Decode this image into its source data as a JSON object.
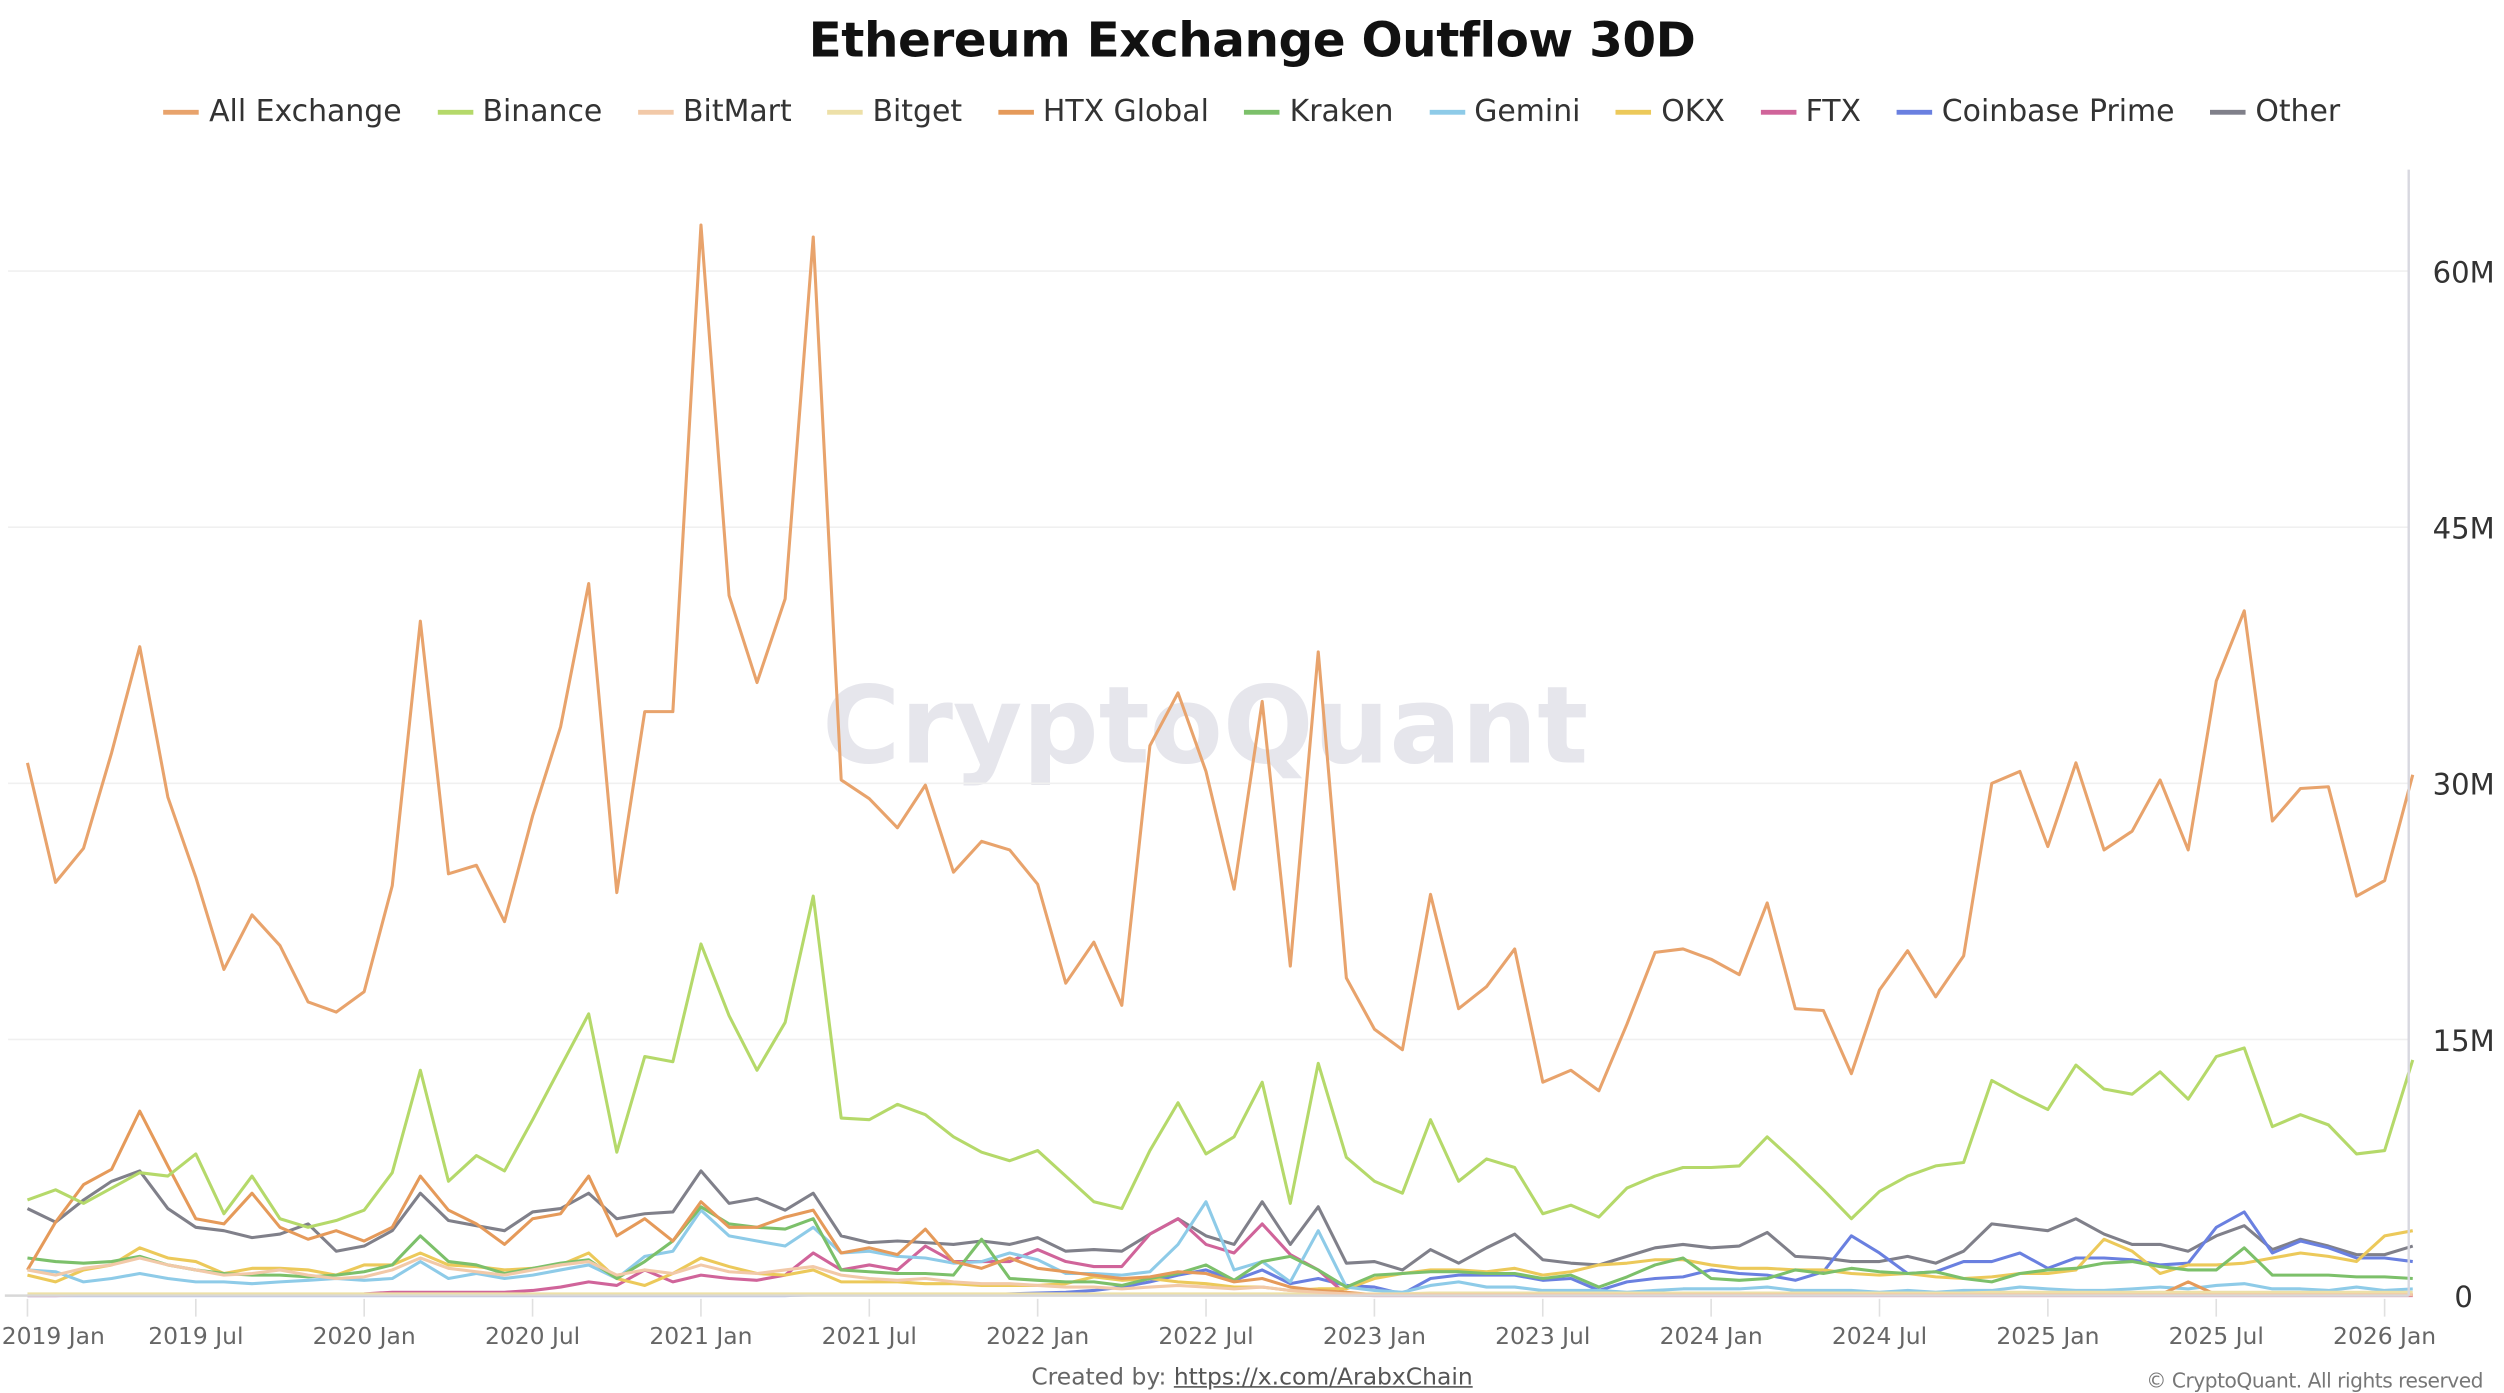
{
  "chart_data": {
    "type": "line",
    "title": "Ethereum Exchange Outflow 30D",
    "xlabel": "",
    "ylabel": "",
    "ylim": [
      0,
      66
    ],
    "y_axis_side": "right",
    "grid": "horizontal",
    "legend_placement": "top",
    "watermark": "CryptoQuant",
    "y_ticks": [
      {
        "value": 0,
        "label": "0"
      },
      {
        "value": 15,
        "label": "15M"
      },
      {
        "value": 30,
        "label": "30M"
      },
      {
        "value": 45,
        "label": "45M"
      },
      {
        "value": 60,
        "label": "60M"
      }
    ],
    "x_ticks": [
      {
        "value": "2019-01",
        "label": "2019 Jan"
      },
      {
        "value": "2019-07",
        "label": "2019 Jul"
      },
      {
        "value": "2020-01",
        "label": "2020 Jan"
      },
      {
        "value": "2020-07",
        "label": "2020 Jul"
      },
      {
        "value": "2021-01",
        "label": "2021 Jan"
      },
      {
        "value": "2021-07",
        "label": "2021 Jul"
      },
      {
        "value": "2022-01",
        "label": "2022 Jan"
      },
      {
        "value": "2022-07",
        "label": "2022 Jul"
      },
      {
        "value": "2023-01",
        "label": "2023 Jan"
      },
      {
        "value": "2023-07",
        "label": "2023 Jul"
      },
      {
        "value": "2024-01",
        "label": "2024 Jan"
      },
      {
        "value": "2024-07",
        "label": "2024 Jul"
      },
      {
        "value": "2025-01",
        "label": "2025 Jan"
      },
      {
        "value": "2025-07",
        "label": "2025 Jul"
      },
      {
        "value": "2026-01",
        "label": "2026 Jan"
      }
    ],
    "units": "M (millions ETH)",
    "x": [
      "2019-01",
      "2019-02",
      "2019-03",
      "2019-04",
      "2019-05",
      "2019-06",
      "2019-07",
      "2019-08",
      "2019-09",
      "2019-10",
      "2019-11",
      "2019-12",
      "2020-01",
      "2020-02",
      "2020-03",
      "2020-04",
      "2020-05",
      "2020-06",
      "2020-07",
      "2020-08",
      "2020-09",
      "2020-10",
      "2020-11",
      "2020-12",
      "2021-01",
      "2021-02",
      "2021-03",
      "2021-04",
      "2021-05",
      "2021-06",
      "2021-07",
      "2021-08",
      "2021-09",
      "2021-10",
      "2021-11",
      "2021-12",
      "2022-01",
      "2022-02",
      "2022-03",
      "2022-04",
      "2022-05",
      "2022-06",
      "2022-07",
      "2022-08",
      "2022-09",
      "2022-10",
      "2022-11",
      "2022-12",
      "2023-01",
      "2023-02",
      "2023-03",
      "2023-04",
      "2023-05",
      "2023-06",
      "2023-07",
      "2023-08",
      "2023-09",
      "2023-10",
      "2023-11",
      "2023-12",
      "2024-01",
      "2024-02",
      "2024-03",
      "2024-04",
      "2024-05",
      "2024-06",
      "2024-07",
      "2024-08",
      "2024-09",
      "2024-10",
      "2024-11",
      "2024-12",
      "2025-01",
      "2025-02",
      "2025-03",
      "2025-04",
      "2025-05",
      "2025-06",
      "2025-07",
      "2025-08",
      "2025-09",
      "2025-10",
      "2025-11",
      "2025-12",
      "2026-01",
      "2026-02"
    ],
    "series": [
      {
        "name": "All Exchange",
        "color": "#e8a36c",
        "values": [
          31.2,
          24.2,
          26.2,
          31.8,
          38.0,
          29.2,
          24.5,
          19.1,
          22.3,
          20.5,
          17.2,
          16.6,
          17.8,
          24.0,
          39.5,
          24.7,
          25.2,
          21.9,
          28.1,
          33.3,
          41.7,
          23.6,
          34.2,
          34.2,
          62.7,
          41.0,
          35.9,
          40.8,
          62.0,
          30.2,
          29.1,
          27.4,
          29.9,
          24.8,
          26.6,
          26.1,
          24.1,
          18.3,
          20.7,
          17.0,
          32.2,
          35.3,
          30.7,
          23.8,
          34.8,
          19.3,
          37.7,
          18.6,
          15.6,
          14.4,
          23.5,
          16.8,
          18.1,
          20.3,
          12.5,
          13.2,
          12.0,
          15.9,
          20.1,
          20.3,
          19.7,
          18.8,
          23.0,
          16.8,
          16.7,
          13.0,
          17.9,
          20.2,
          17.5,
          19.9,
          30.0,
          30.7,
          26.3,
          31.2,
          26.1,
          27.2,
          30.2,
          26.1,
          36.0,
          40.1,
          27.8,
          29.7,
          29.8,
          23.4,
          24.3,
          30.5
        ]
      },
      {
        "name": "Binance",
        "color": "#b5d96a",
        "values": [
          5.6,
          6.2,
          5.4,
          6.3,
          7.2,
          7.0,
          8.3,
          4.8,
          7.0,
          4.5,
          4.0,
          4.4,
          5.0,
          7.2,
          13.2,
          6.7,
          8.2,
          7.3,
          10.3,
          13.4,
          16.5,
          8.4,
          14.0,
          13.7,
          20.6,
          16.4,
          13.2,
          16.0,
          23.4,
          10.4,
          10.3,
          11.2,
          10.6,
          9.3,
          8.4,
          7.9,
          8.5,
          7.0,
          5.5,
          5.1,
          8.5,
          11.3,
          8.3,
          9.3,
          12.5,
          5.4,
          13.6,
          8.1,
          6.7,
          6.0,
          10.3,
          6.7,
          8.0,
          7.5,
          4.8,
          5.3,
          4.6,
          6.3,
          7.0,
          7.5,
          7.5,
          7.6,
          9.3,
          7.8,
          6.2,
          4.5,
          6.1,
          7.0,
          7.6,
          7.8,
          12.6,
          11.7,
          10.9,
          13.5,
          12.1,
          11.8,
          13.1,
          11.5,
          14.0,
          14.5,
          9.9,
          10.6,
          10.0,
          8.3,
          8.5,
          13.8
        ]
      },
      {
        "name": "BitMart",
        "color": "#f2c9a8",
        "values": [
          1.5,
          1.2,
          1.6,
          1.8,
          2.2,
          1.8,
          1.5,
          1.2,
          1.3,
          1.5,
          1.2,
          1.0,
          1.1,
          1.5,
          2.2,
          1.6,
          1.4,
          1.2,
          1.5,
          1.8,
          2.0,
          1.2,
          1.5,
          1.3,
          1.8,
          1.4,
          1.3,
          1.5,
          1.7,
          1.2,
          1.0,
          0.9,
          1.0,
          0.8,
          0.7,
          0.7,
          0.6,
          0.5,
          0.5,
          0.4,
          0.5,
          0.6,
          0.5,
          0.4,
          0.5,
          0.3,
          0.2,
          0.1,
          0.05,
          0.05,
          0.05,
          0.05,
          0.05,
          0.05,
          0.05,
          0.05,
          0.05,
          0.05,
          0.05,
          0.05,
          0.05,
          0.05,
          0.05,
          0.05,
          0.05,
          0.05,
          0.05,
          0.05,
          0.05,
          0.05,
          0.05,
          0.05,
          0.05,
          0.05,
          0.05,
          0.05,
          0.05,
          0.05,
          0.05,
          0.05,
          0.05,
          0.05,
          0.05,
          0.05,
          0.05,
          0.05
        ]
      },
      {
        "name": "Bitget",
        "color": "#ede0a8",
        "values": [
          0.1,
          0.1,
          0.1,
          0.1,
          0.1,
          0.1,
          0.1,
          0.1,
          0.1,
          0.1,
          0.1,
          0.1,
          0.1,
          0.1,
          0.1,
          0.1,
          0.1,
          0.1,
          0.1,
          0.1,
          0.1,
          0.1,
          0.1,
          0.1,
          0.1,
          0.1,
          0.1,
          0.1,
          0.1,
          0.1,
          0.1,
          0.1,
          0.1,
          0.1,
          0.1,
          0.1,
          0.1,
          0.1,
          0.1,
          0.1,
          0.1,
          0.1,
          0.1,
          0.1,
          0.1,
          0.1,
          0.1,
          0.1,
          0.1,
          0.1,
          0.15,
          0.15,
          0.15,
          0.15,
          0.15,
          0.15,
          0.15,
          0.15,
          0.15,
          0.15,
          0.15,
          0.15,
          0.15,
          0.15,
          0.15,
          0.15,
          0.15,
          0.15,
          0.15,
          0.15,
          0.2,
          0.2,
          0.2,
          0.2,
          0.2,
          0.2,
          0.2,
          0.2,
          0.2,
          0.2,
          0.2,
          0.2,
          0.2,
          0.2,
          0.2,
          0.2
        ]
      },
      {
        "name": "HTX Global",
        "color": "#e59a5a",
        "values": [
          1.5,
          4.3,
          6.5,
          7.4,
          10.8,
          7.6,
          4.5,
          4.2,
          6.0,
          4.0,
          3.3,
          3.8,
          3.2,
          4.0,
          7.0,
          5.0,
          4.2,
          3.0,
          4.5,
          4.8,
          7.0,
          3.5,
          4.5,
          3.2,
          5.5,
          4.0,
          4.0,
          4.6,
          5.0,
          2.5,
          2.8,
          2.4,
          3.9,
          2.0,
          1.6,
          2.2,
          1.6,
          1.4,
          1.2,
          1.0,
          1.1,
          1.4,
          1.3,
          0.8,
          1.0,
          0.5,
          0.3,
          0.2,
          0.05,
          0.05,
          0.05,
          0.05,
          0.05,
          0.05,
          0.05,
          0.05,
          0.05,
          0.05,
          0.05,
          0.05,
          0.05,
          0.05,
          0.05,
          0.05,
          0.05,
          0.05,
          0.05,
          0.05,
          0.05,
          0.05,
          0.05,
          0.05,
          0.05,
          0.05,
          0.05,
          0.05,
          0.05,
          0.8,
          0.05,
          0.05,
          0.05,
          0.05,
          0.05,
          0.05,
          0.05,
          0.05
        ]
      },
      {
        "name": "Kraken",
        "color": "#7cc06a",
        "values": [
          2.2,
          2.0,
          1.9,
          2.0,
          2.3,
          1.8,
          1.5,
          1.3,
          1.2,
          1.2,
          1.1,
          1.2,
          1.4,
          1.8,
          3.5,
          2.0,
          1.8,
          1.3,
          1.6,
          1.9,
          2.1,
          1.0,
          2.0,
          3.2,
          5.2,
          4.2,
          4.0,
          3.9,
          4.5,
          1.5,
          1.4,
          1.3,
          1.3,
          1.2,
          3.3,
          1.0,
          0.9,
          0.8,
          0.8,
          0.6,
          1.0,
          1.3,
          1.8,
          0.9,
          2.0,
          2.3,
          1.5,
          0.5,
          1.2,
          1.3,
          1.4,
          1.4,
          1.3,
          1.3,
          1.0,
          1.2,
          0.5,
          1.1,
          1.8,
          2.2,
          1.0,
          0.9,
          1.0,
          1.5,
          1.3,
          1.6,
          1.4,
          1.3,
          1.4,
          1.0,
          0.8,
          1.3,
          1.5,
          1.6,
          1.9,
          2.0,
          1.7,
          1.5,
          1.5,
          2.8,
          1.2,
          1.2,
          1.2,
          1.1,
          1.1,
          1.0
        ]
      },
      {
        "name": "Gemini",
        "color": "#8ecbe8",
        "values": [
          1.5,
          1.4,
          0.8,
          1.0,
          1.3,
          1.0,
          0.8,
          0.8,
          0.7,
          0.8,
          0.9,
          1.0,
          0.9,
          1.0,
          2.0,
          1.0,
          1.3,
          1.0,
          1.2,
          1.5,
          1.8,
          1.0,
          2.3,
          2.6,
          5.0,
          3.5,
          3.2,
          2.9,
          4.0,
          2.5,
          2.6,
          2.3,
          2.2,
          1.9,
          2.0,
          2.5,
          2.1,
          1.3,
          1.3,
          1.2,
          1.4,
          3.0,
          5.5,
          1.5,
          2.0,
          0.8,
          3.8,
          0.5,
          0.3,
          0.2,
          0.6,
          0.8,
          0.5,
          0.5,
          0.3,
          0.3,
          0.3,
          0.2,
          0.3,
          0.4,
          0.4,
          0.4,
          0.5,
          0.3,
          0.3,
          0.3,
          0.2,
          0.3,
          0.2,
          0.3,
          0.3,
          0.5,
          0.4,
          0.3,
          0.3,
          0.4,
          0.5,
          0.4,
          0.6,
          0.7,
          0.4,
          0.4,
          0.3,
          0.5,
          0.3,
          0.4
        ]
      },
      {
        "name": "OKX",
        "color": "#ecc95a",
        "values": [
          1.2,
          0.8,
          1.5,
          1.8,
          2.8,
          2.2,
          2.0,
          1.3,
          1.6,
          1.6,
          1.5,
          1.2,
          1.8,
          1.8,
          2.5,
          1.8,
          1.7,
          1.5,
          1.6,
          1.8,
          2.5,
          1.0,
          0.6,
          1.3,
          2.2,
          1.7,
          1.3,
          1.2,
          1.5,
          0.8,
          0.8,
          0.8,
          0.7,
          0.7,
          0.6,
          0.6,
          0.6,
          0.7,
          1.1,
          0.9,
          1.0,
          0.8,
          0.7,
          0.5,
          0.5,
          0.3,
          0.4,
          0.4,
          1.0,
          1.3,
          1.5,
          1.5,
          1.4,
          1.6,
          1.2,
          1.4,
          1.8,
          1.9,
          2.1,
          2.1,
          1.8,
          1.6,
          1.6,
          1.5,
          1.5,
          1.3,
          1.2,
          1.3,
          1.1,
          1.0,
          1.1,
          1.3,
          1.3,
          1.5,
          3.3,
          2.6,
          1.3,
          1.8,
          1.8,
          1.9,
          2.2,
          2.5,
          2.3,
          2.0,
          3.5,
          3.8
        ]
      },
      {
        "name": "FTX",
        "color": "#d0649a",
        "values": [
          0,
          0,
          0.05,
          0.05,
          0.05,
          0.05,
          0.05,
          0.05,
          0.05,
          0.05,
          0.05,
          0.08,
          0.1,
          0.2,
          0.2,
          0.2,
          0.2,
          0.2,
          0.3,
          0.5,
          0.8,
          0.6,
          1.5,
          0.8,
          1.2,
          1.0,
          0.9,
          1.2,
          2.5,
          1.5,
          1.8,
          1.5,
          2.9,
          2.0,
          2.0,
          2.0,
          2.7,
          2.0,
          1.7,
          1.7,
          3.6,
          4.5,
          3.0,
          2.5,
          4.2,
          2.4,
          1.5,
          0.05,
          0,
          0,
          0,
          0,
          0,
          0,
          0,
          0,
          0,
          0,
          0,
          0,
          0,
          0,
          0,
          0,
          0,
          0,
          0,
          0,
          0,
          0,
          0,
          0,
          0,
          0,
          0,
          0,
          0,
          0,
          0,
          0,
          0,
          0,
          0,
          0,
          0,
          0
        ]
      },
      {
        "name": "Coinbase Prime",
        "color": "#6a80e0",
        "values": [
          0,
          0,
          0,
          0,
          0,
          0,
          0,
          0,
          0,
          0,
          0,
          0,
          0,
          0,
          0,
          0,
          0,
          0,
          0,
          0,
          0,
          0,
          0,
          0,
          0,
          0,
          0,
          0,
          0.05,
          0.05,
          0.05,
          0.05,
          0.05,
          0.05,
          0.05,
          0.1,
          0.15,
          0.2,
          0.3,
          0.5,
          0.8,
          1.2,
          1.5,
          0.9,
          1.5,
          0.7,
          1.0,
          0.6,
          0.5,
          0.1,
          1.0,
          1.2,
          1.2,
          1.2,
          0.9,
          1.0,
          0.3,
          0.8,
          1.0,
          1.1,
          1.5,
          1.3,
          1.2,
          0.9,
          1.4,
          3.5,
          2.5,
          1.3,
          1.4,
          2.0,
          2.0,
          2.5,
          1.6,
          2.2,
          2.2,
          2.1,
          1.8,
          1.9,
          4.0,
          4.9,
          2.5,
          3.2,
          2.8,
          2.2,
          2.2,
          2.0
        ]
      },
      {
        "name": "Other",
        "color": "#80808a",
        "values": [
          5.1,
          4.3,
          5.6,
          6.7,
          7.3,
          5.1,
          4.0,
          3.8,
          3.4,
          3.6,
          4.2,
          2.6,
          2.9,
          3.8,
          6.0,
          4.4,
          4.1,
          3.8,
          4.9,
          5.1,
          6.0,
          4.5,
          4.8,
          4.9,
          7.3,
          5.4,
          5.7,
          5.0,
          6.0,
          3.5,
          3.1,
          3.2,
          3.1,
          3.0,
          3.2,
          3.0,
          3.4,
          2.6,
          2.7,
          2.6,
          3.6,
          4.5,
          3.5,
          3.0,
          5.5,
          3.0,
          5.2,
          1.9,
          2.0,
          1.5,
          2.7,
          1.9,
          2.8,
          3.6,
          2.1,
          1.9,
          1.8,
          2.3,
          2.8,
          3.0,
          2.8,
          2.9,
          3.7,
          2.3,
          2.2,
          2.0,
          2.0,
          2.3,
          1.9,
          2.6,
          4.2,
          4.0,
          3.8,
          4.5,
          3.6,
          3.0,
          3.0,
          2.6,
          3.5,
          4.1,
          2.7,
          3.3,
          2.9,
          2.4,
          2.4,
          2.9
        ]
      }
    ]
  },
  "footer": {
    "credit_prefix": "Created by: ",
    "credit_link": "https://x.com/ArabxChain",
    "copyright": "© CryptoQuant. All rights reserved"
  }
}
